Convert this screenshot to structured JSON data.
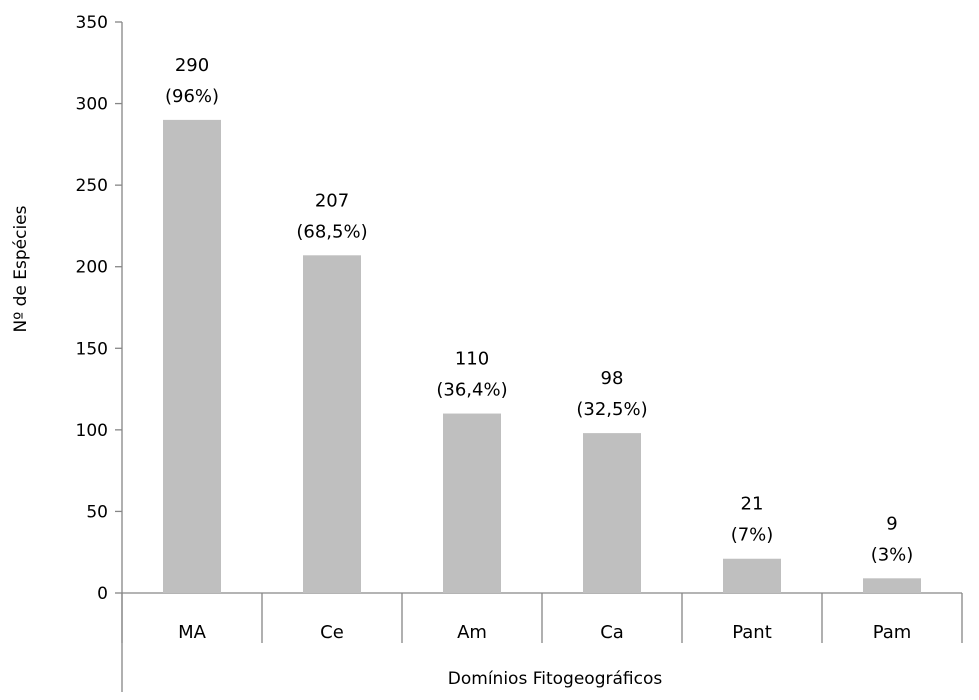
{
  "chart_data": {
    "type": "bar",
    "title": "",
    "xlabel": "Domínios Fitogeográficos",
    "ylabel": "Nº de Espécies",
    "ylim": [
      0,
      350
    ],
    "yticks": [
      0,
      50,
      100,
      150,
      200,
      250,
      300,
      350
    ],
    "categories": [
      "MA",
      "Ce",
      "Am",
      "Ca",
      "Pant",
      "Pam"
    ],
    "values": [
      290,
      207,
      110,
      98,
      21,
      9
    ],
    "data_labels": [
      [
        "290",
        "(96%)"
      ],
      [
        "207",
        "(68,5%)"
      ],
      [
        "110",
        "(36,4%)"
      ],
      [
        "98",
        "(32,5%)"
      ],
      [
        "21",
        "(7%)"
      ],
      [
        "9",
        "(3%)"
      ]
    ],
    "bar_color": "#bfbfbf",
    "axis_color": "#868686",
    "grid": false,
    "legend": "none"
  }
}
